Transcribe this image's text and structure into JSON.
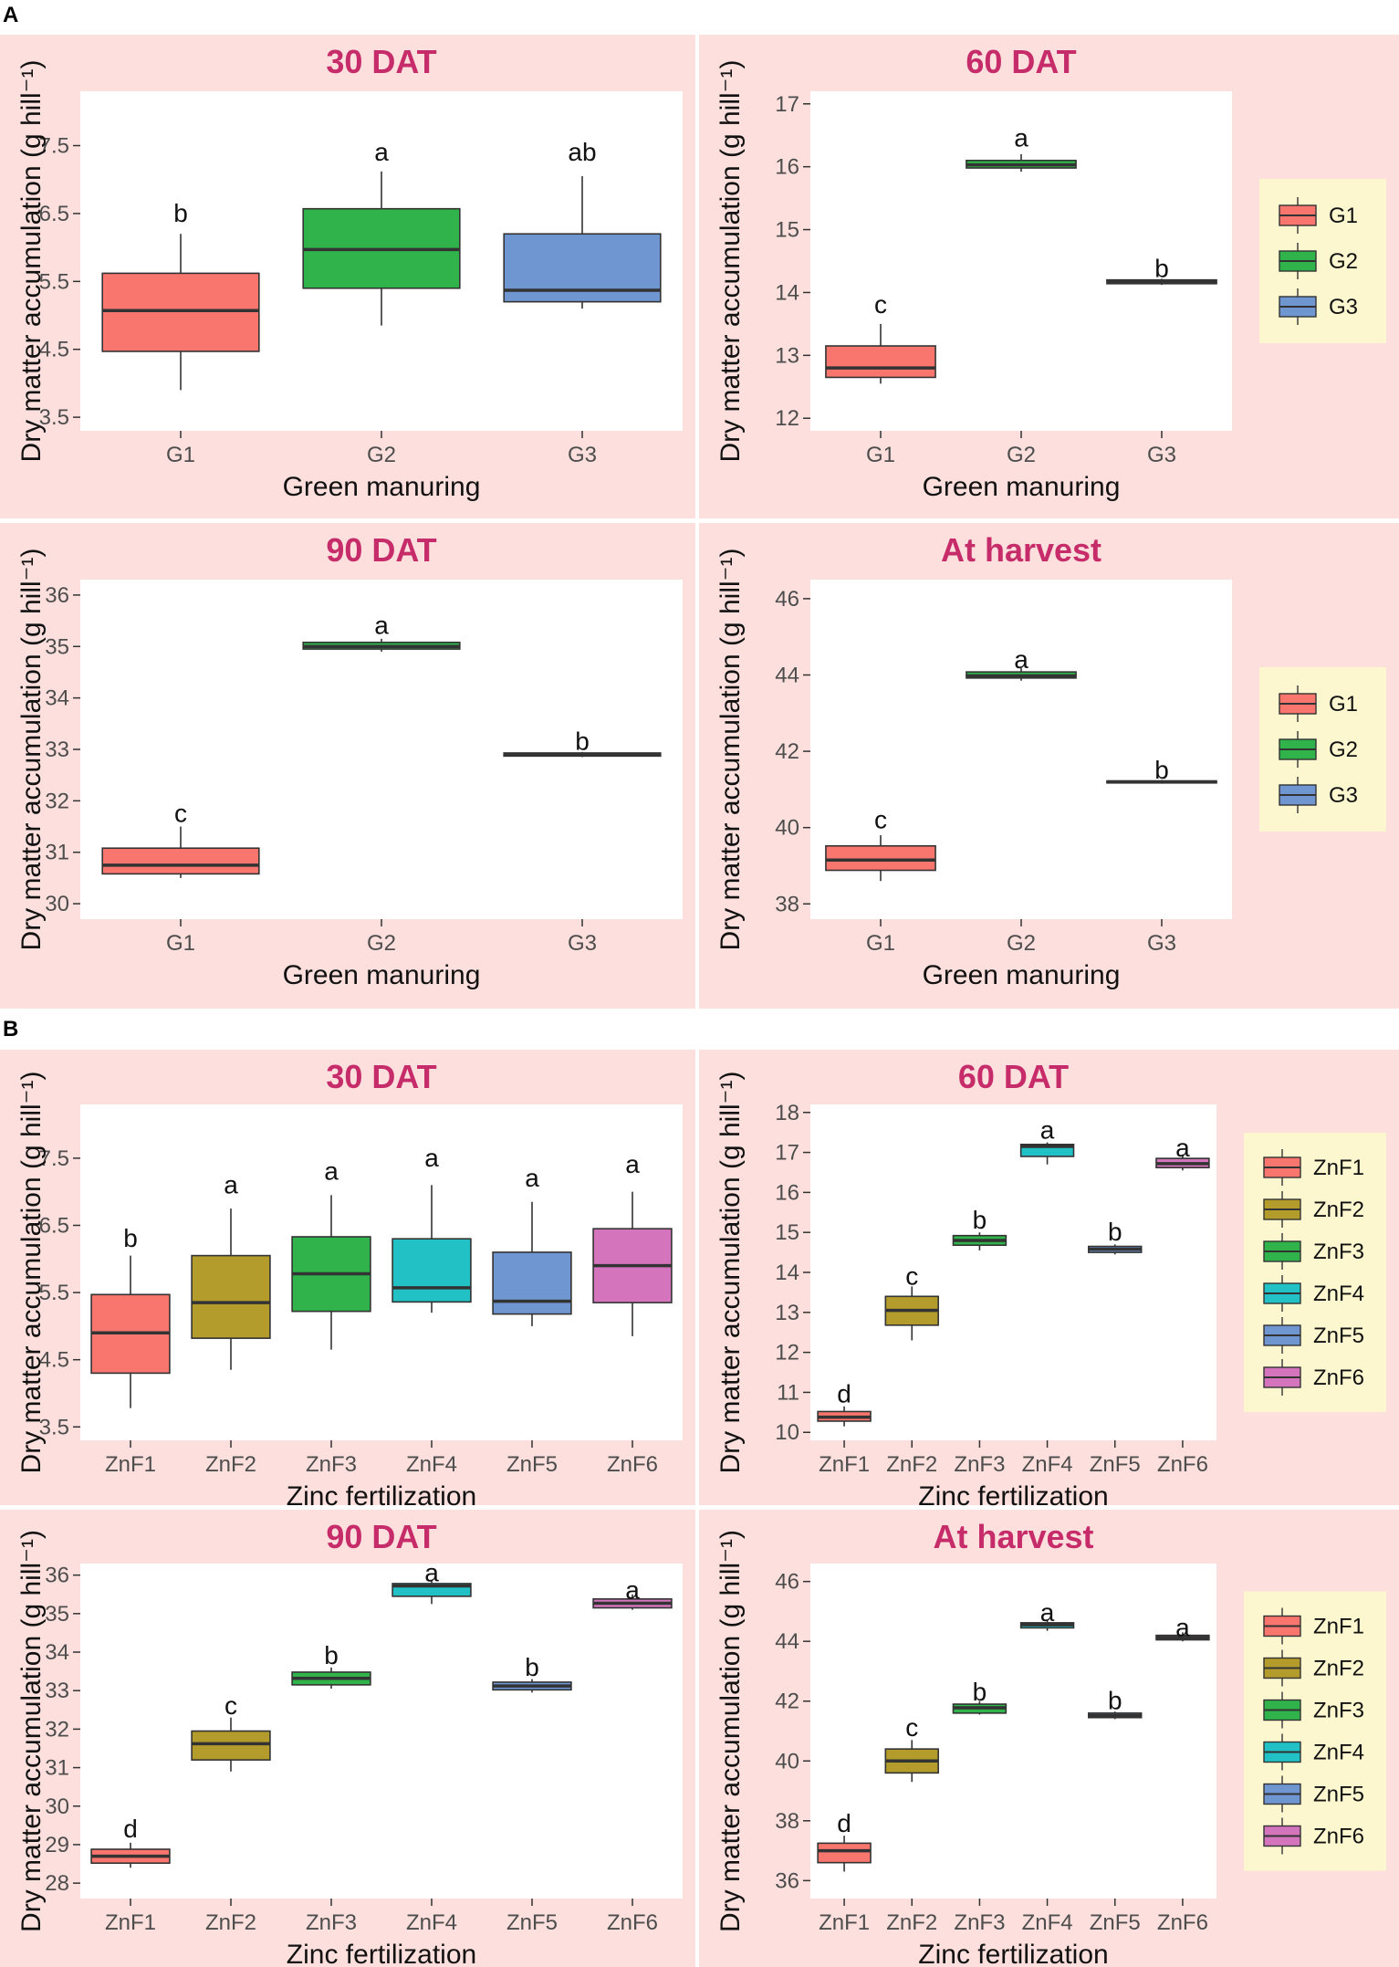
{
  "colors": {
    "title": "#c72c6a",
    "panel_bg": "#fde0dd",
    "legend_bg": "#fdf7d0",
    "G1": "#f8766d",
    "G2": "#2fb34a",
    "G3": "#6f96d0",
    "ZnF1": "#f8766d",
    "ZnF2": "#b39c2c",
    "ZnF3": "#2fb34a",
    "ZnF4": "#21c1c6",
    "ZnF5": "#6f96d0",
    "ZnF6": "#d474bd"
  },
  "sections": [
    "A",
    "B"
  ],
  "chart_data": [
    {
      "type": "box",
      "section": "A",
      "title": "30 DAT",
      "xlabel": "Green manuring",
      "ylabel": "Dry matter accumulation (g hill⁻¹)",
      "ylim": [
        3.3,
        8.3
      ],
      "yticks": [
        3.5,
        4.5,
        5.5,
        6.5,
        7.5
      ],
      "categories": [
        "G1",
        "G2",
        "G3"
      ],
      "boxes": [
        {
          "name": "G1",
          "min": 3.9,
          "q1": 4.47,
          "median": 5.07,
          "q3": 5.62,
          "max": 6.2,
          "label": "b",
          "label_y": 6.5
        },
        {
          "name": "G2",
          "min": 4.85,
          "q1": 5.4,
          "median": 5.97,
          "q3": 6.57,
          "max": 7.12,
          "label": "a",
          "label_y": 7.4
        },
        {
          "name": "G3",
          "min": 5.1,
          "q1": 5.2,
          "median": 5.37,
          "q3": 6.2,
          "max": 7.05,
          "label": "ab",
          "label_y": 7.4
        }
      ],
      "legend": null
    },
    {
      "type": "box",
      "section": "A",
      "title": "60 DAT",
      "xlabel": "Green manuring",
      "ylabel": "Dry matter accumulation (g hill⁻¹)",
      "ylim": [
        11.8,
        17.2
      ],
      "yticks": [
        12,
        13,
        14,
        15,
        16,
        17
      ],
      "categories": [
        "G1",
        "G2",
        "G3"
      ],
      "boxes": [
        {
          "name": "G1",
          "min": 12.55,
          "q1": 12.65,
          "median": 12.8,
          "q3": 13.15,
          "max": 13.5,
          "label": "c",
          "label_y": 13.8
        },
        {
          "name": "G2",
          "min": 15.92,
          "q1": 15.98,
          "median": 16.03,
          "q3": 16.1,
          "max": 16.2,
          "label": "a",
          "label_y": 16.45
        },
        {
          "name": "G3",
          "min": 14.12,
          "q1": 14.14,
          "median": 14.17,
          "q3": 14.2,
          "max": 14.22,
          "label": "b",
          "label_y": 14.38
        }
      ],
      "legend": {
        "entries": [
          "G1",
          "G2",
          "G3"
        ]
      }
    },
    {
      "type": "box",
      "section": "A",
      "title": "90 DAT",
      "xlabel": "Green manuring",
      "ylabel": "Dry matter accumulation (g hill⁻¹)",
      "ylim": [
        29.7,
        36.3
      ],
      "yticks": [
        30,
        31,
        32,
        33,
        34,
        35,
        36
      ],
      "categories": [
        "G1",
        "G2",
        "G3"
      ],
      "boxes": [
        {
          "name": "G1",
          "min": 30.5,
          "q1": 30.58,
          "median": 30.75,
          "q3": 31.08,
          "max": 31.5,
          "label": "c",
          "label_y": 31.75
        },
        {
          "name": "G2",
          "min": 34.9,
          "q1": 34.95,
          "median": 35.0,
          "q3": 35.08,
          "max": 35.15,
          "label": "a",
          "label_y": 35.4
        },
        {
          "name": "G3",
          "min": 32.85,
          "q1": 32.87,
          "median": 32.9,
          "q3": 32.93,
          "max": 32.95,
          "label": "b",
          "label_y": 33.15
        }
      ],
      "legend": null
    },
    {
      "type": "box",
      "section": "A",
      "title": "At harvest",
      "xlabel": "Green manuring",
      "ylabel": "Dry matter accumulation (g hill⁻¹)",
      "ylim": [
        37.6,
        46.5
      ],
      "yticks": [
        38,
        40,
        42,
        44,
        46
      ],
      "categories": [
        "G1",
        "G2",
        "G3"
      ],
      "boxes": [
        {
          "name": "G1",
          "min": 38.6,
          "q1": 38.88,
          "median": 39.15,
          "q3": 39.52,
          "max": 39.8,
          "label": "c",
          "label_y": 40.2
        },
        {
          "name": "G2",
          "min": 43.85,
          "q1": 43.92,
          "median": 43.98,
          "q3": 44.08,
          "max": 44.18,
          "label": "a",
          "label_y": 44.4
        },
        {
          "name": "G3",
          "min": 41.15,
          "q1": 41.17,
          "median": 41.2,
          "q3": 41.22,
          "max": 41.25,
          "label": "b",
          "label_y": 41.5
        }
      ],
      "legend": {
        "entries": [
          "G1",
          "G2",
          "G3"
        ]
      }
    },
    {
      "type": "box",
      "section": "B",
      "title": "30 DAT",
      "xlabel": "Zinc fertilization",
      "ylabel": "Dry matter accumulation (g hill⁻¹)",
      "ylim": [
        3.3,
        8.3
      ],
      "yticks": [
        3.5,
        4.5,
        5.5,
        6.5,
        7.5
      ],
      "categories": [
        "ZnF1",
        "ZnF2",
        "ZnF3",
        "ZnF4",
        "ZnF5",
        "ZnF6"
      ],
      "boxes": [
        {
          "name": "ZnF1",
          "min": 3.78,
          "q1": 4.3,
          "median": 4.9,
          "q3": 5.47,
          "max": 6.05,
          "label": "b",
          "label_y": 6.3
        },
        {
          "name": "ZnF2",
          "min": 4.35,
          "q1": 4.82,
          "median": 5.35,
          "q3": 6.05,
          "max": 6.75,
          "label": "a",
          "label_y": 7.1
        },
        {
          "name": "ZnF3",
          "min": 4.65,
          "q1": 5.22,
          "median": 5.78,
          "q3": 6.33,
          "max": 6.95,
          "label": "a",
          "label_y": 7.3
        },
        {
          "name": "ZnF4",
          "min": 5.2,
          "q1": 5.36,
          "median": 5.57,
          "q3": 6.3,
          "max": 7.1,
          "label": "a",
          "label_y": 7.5
        },
        {
          "name": "ZnF5",
          "min": 5.0,
          "q1": 5.18,
          "median": 5.37,
          "q3": 6.1,
          "max": 6.85,
          "label": "a",
          "label_y": 7.2
        },
        {
          "name": "ZnF6",
          "min": 4.85,
          "q1": 5.35,
          "median": 5.9,
          "q3": 6.45,
          "max": 7.0,
          "label": "a",
          "label_y": 7.4
        }
      ],
      "legend": null
    },
    {
      "type": "box",
      "section": "B",
      "title": "60 DAT",
      "xlabel": "Zinc fertilization",
      "ylabel": "Dry matter accumulation (g hill⁻¹)",
      "ylim": [
        9.8,
        18.2
      ],
      "yticks": [
        10,
        11,
        12,
        13,
        14,
        15,
        16,
        17,
        18
      ],
      "categories": [
        "ZnF1",
        "ZnF2",
        "ZnF3",
        "ZnF4",
        "ZnF5",
        "ZnF6"
      ],
      "boxes": [
        {
          "name": "ZnF1",
          "min": 10.15,
          "q1": 10.28,
          "median": 10.38,
          "q3": 10.52,
          "max": 10.65,
          "label": "d",
          "label_y": 10.95
        },
        {
          "name": "ZnF2",
          "min": 12.3,
          "q1": 12.68,
          "median": 13.05,
          "q3": 13.4,
          "max": 13.65,
          "label": "c",
          "label_y": 13.9
        },
        {
          "name": "ZnF3",
          "min": 14.55,
          "q1": 14.68,
          "median": 14.8,
          "q3": 14.92,
          "max": 15.0,
          "label": "b",
          "label_y": 15.3
        },
        {
          "name": "ZnF4",
          "min": 16.7,
          "q1": 16.9,
          "median": 17.15,
          "q3": 17.2,
          "max": 17.25,
          "label": "a",
          "label_y": 17.55
        },
        {
          "name": "ZnF5",
          "min": 14.45,
          "q1": 14.5,
          "median": 14.58,
          "q3": 14.65,
          "max": 14.7,
          "label": "b",
          "label_y": 15.0
        },
        {
          "name": "ZnF6",
          "min": 16.55,
          "q1": 16.62,
          "median": 16.72,
          "q3": 16.85,
          "max": 16.95,
          "label": "a",
          "label_y": 17.1
        }
      ],
      "legend": {
        "entries": [
          "ZnF1",
          "ZnF2",
          "ZnF3",
          "ZnF4",
          "ZnF5",
          "ZnF6"
        ]
      }
    },
    {
      "type": "box",
      "section": "B",
      "title": "90 DAT",
      "xlabel": "Zinc fertilization",
      "ylabel": "Dry matter accumulation (g hill⁻¹)",
      "ylim": [
        27.6,
        36.3
      ],
      "yticks": [
        28,
        29,
        30,
        31,
        32,
        33,
        34,
        35,
        36
      ],
      "categories": [
        "ZnF1",
        "ZnF2",
        "ZnF3",
        "ZnF4",
        "ZnF5",
        "ZnF6"
      ],
      "boxes": [
        {
          "name": "ZnF1",
          "min": 28.4,
          "q1": 28.52,
          "median": 28.7,
          "q3": 28.88,
          "max": 29.05,
          "label": "d",
          "label_y": 29.4
        },
        {
          "name": "ZnF2",
          "min": 30.9,
          "q1": 31.2,
          "median": 31.62,
          "q3": 31.95,
          "max": 32.3,
          "label": "c",
          "label_y": 32.6
        },
        {
          "name": "ZnF3",
          "min": 33.05,
          "q1": 33.15,
          "median": 33.32,
          "q3": 33.48,
          "max": 33.6,
          "label": "b",
          "label_y": 33.9
        },
        {
          "name": "ZnF4",
          "min": 35.25,
          "q1": 35.45,
          "median": 35.72,
          "q3": 35.78,
          "max": 35.85,
          "label": "a",
          "label_y": 36.05
        },
        {
          "name": "ZnF5",
          "min": 32.95,
          "q1": 33.02,
          "median": 33.12,
          "q3": 33.22,
          "max": 33.3,
          "label": "b",
          "label_y": 33.6
        },
        {
          "name": "ZnF6",
          "min": 35.1,
          "q1": 35.15,
          "median": 35.27,
          "q3": 35.38,
          "max": 35.5,
          "label": "a",
          "label_y": 35.6
        }
      ],
      "legend": null
    },
    {
      "type": "box",
      "section": "B",
      "title": "At harvest",
      "xlabel": "Zinc fertilization",
      "ylabel": "Dry matter accumulation (g hill⁻¹)",
      "ylim": [
        35.4,
        46.6
      ],
      "yticks": [
        36,
        38,
        40,
        42,
        44,
        46
      ],
      "categories": [
        "ZnF1",
        "ZnF2",
        "ZnF3",
        "ZnF4",
        "ZnF5",
        "ZnF6"
      ],
      "boxes": [
        {
          "name": "ZnF1",
          "min": 36.3,
          "q1": 36.6,
          "median": 37.0,
          "q3": 37.25,
          "max": 37.5,
          "label": "d",
          "label_y": 37.9
        },
        {
          "name": "ZnF2",
          "min": 39.3,
          "q1": 39.6,
          "median": 40.0,
          "q3": 40.4,
          "max": 40.7,
          "label": "c",
          "label_y": 41.1
        },
        {
          "name": "ZnF3",
          "min": 41.55,
          "q1": 41.6,
          "median": 41.78,
          "q3": 41.9,
          "max": 42.0,
          "label": "b",
          "label_y": 42.3
        },
        {
          "name": "ZnF4",
          "min": 44.35,
          "q1": 44.45,
          "median": 44.55,
          "q3": 44.62,
          "max": 44.7,
          "label": "a",
          "label_y": 44.95
        },
        {
          "name": "ZnF5",
          "min": 41.4,
          "q1": 41.45,
          "median": 41.52,
          "q3": 41.6,
          "max": 41.65,
          "label": "b",
          "label_y": 42.0
        },
        {
          "name": "ZnF6",
          "min": 44.0,
          "q1": 44.05,
          "median": 44.12,
          "q3": 44.2,
          "max": 44.3,
          "label": "a",
          "label_y": 44.45
        }
      ],
      "legend": {
        "entries": [
          "ZnF1",
          "ZnF2",
          "ZnF3",
          "ZnF4",
          "ZnF5",
          "ZnF6"
        ]
      }
    }
  ]
}
